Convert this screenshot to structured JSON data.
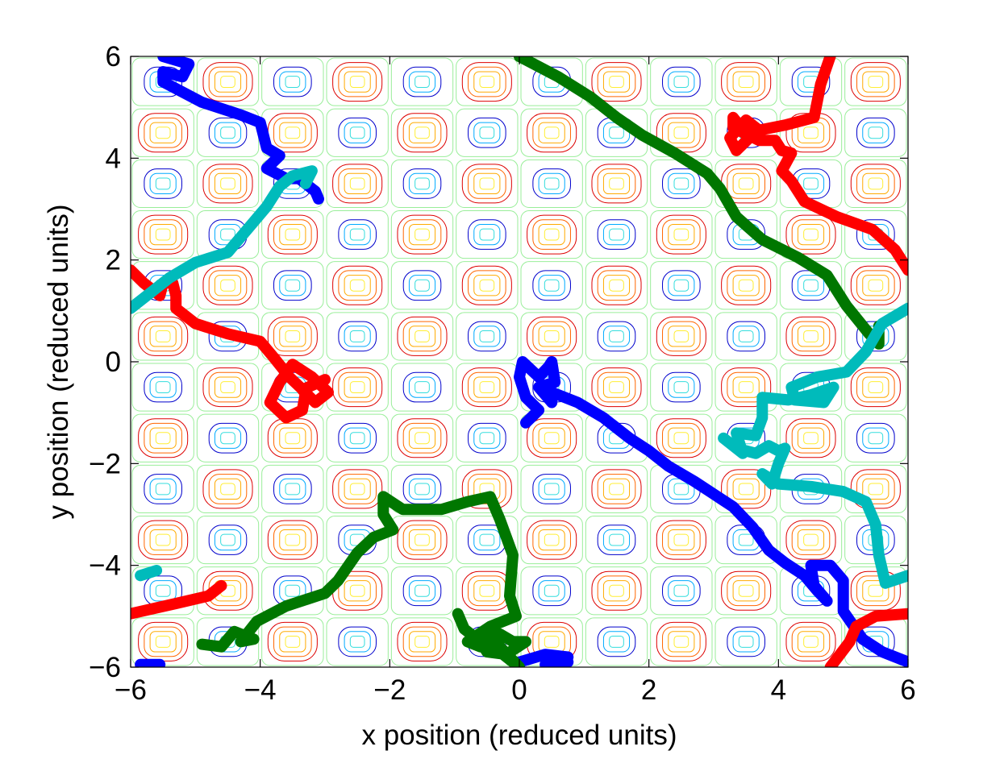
{
  "chart_data": {
    "type": "line",
    "title": "",
    "xlabel": "x position (reduced units)",
    "ylabel": "y position (reduced units)",
    "xlim": [
      -6,
      6
    ],
    "ylim": [
      -6,
      6
    ],
    "xticks": [
      -6,
      -4,
      -2,
      0,
      2,
      4,
      6
    ],
    "yticks": [
      -6,
      -4,
      -2,
      0,
      2,
      4,
      6
    ],
    "xtick_labels": [
      "−6",
      "−4",
      "−2",
      "0",
      "2",
      "4",
      "6"
    ],
    "ytick_labels": [
      "−6",
      "−4",
      "−2",
      "0",
      "2",
      "4",
      "6"
    ],
    "grid": false,
    "legend": "none",
    "background_contour": {
      "description_function": "sin(pi*x)*sin(pi*y) periodic potential",
      "cell_period": 1,
      "colors": [
        "#0000cc",
        "#00aaff",
        "#33dddd",
        "#99ee99",
        "#ffee33",
        "#ffaa00",
        "#ff6600",
        "#dd0000"
      ]
    },
    "series": [
      {
        "color": "#0000ff",
        "points": [
          [
            -5.5,
            6.0
          ],
          [
            -5.1,
            5.85
          ],
          [
            -5.2,
            5.6
          ],
          [
            -5.5,
            5.7
          ],
          [
            -5.5,
            5.5
          ],
          [
            -4.9,
            5.1
          ],
          [
            -4.3,
            4.85
          ],
          [
            -4.0,
            4.7
          ],
          [
            -3.9,
            4.2
          ],
          [
            -3.7,
            4.05
          ],
          [
            -3.9,
            3.8
          ],
          [
            -3.6,
            3.6
          ],
          [
            -3.4,
            3.6
          ],
          [
            -3.2,
            3.4
          ],
          [
            -3.15,
            3.35
          ],
          [
            -3.1,
            3.2
          ]
        ]
      },
      {
        "color": "#0000ff",
        "points": [
          [
            -5.85,
            -5.95
          ],
          [
            -5.55,
            -5.95
          ]
        ]
      },
      {
        "color": "#0000ff",
        "points": [
          [
            0.1,
            -1.2
          ],
          [
            0.3,
            -0.95
          ],
          [
            0.1,
            -0.7
          ],
          [
            0.0,
            -0.3
          ],
          [
            0.05,
            0.0
          ],
          [
            0.3,
            -0.3
          ],
          [
            0.45,
            -0.1
          ],
          [
            0.5,
            0.0
          ],
          [
            0.55,
            -0.4
          ],
          [
            0.3,
            -0.5
          ],
          [
            0.5,
            -0.8
          ],
          [
            0.5,
            -0.6
          ],
          [
            0.9,
            -0.8
          ],
          [
            1.3,
            -1.1
          ],
          [
            1.7,
            -1.5
          ],
          [
            2.0,
            -1.75
          ],
          [
            2.3,
            -2.05
          ],
          [
            2.7,
            -2.35
          ],
          [
            3.0,
            -2.6
          ],
          [
            3.3,
            -2.85
          ],
          [
            3.6,
            -3.25
          ],
          [
            3.85,
            -3.7
          ],
          [
            4.1,
            -3.95
          ],
          [
            4.4,
            -4.2
          ],
          [
            4.6,
            -4.5
          ],
          [
            4.75,
            -4.7
          ],
          [
            4.55,
            -4.4
          ],
          [
            4.5,
            -4.0
          ],
          [
            4.8,
            -4.0
          ],
          [
            5.0,
            -4.3
          ],
          [
            5.0,
            -4.9
          ],
          [
            5.3,
            -5.45
          ],
          [
            5.6,
            -5.7
          ],
          [
            6.0,
            -5.9
          ]
        ]
      },
      {
        "color": "#0000ff",
        "points": [
          [
            0.0,
            -5.9
          ],
          [
            0.4,
            -5.75
          ],
          [
            0.75,
            -5.8
          ],
          [
            0.4,
            -5.95
          ],
          [
            0.75,
            -5.9
          ]
        ]
      },
      {
        "color": "#ff0000",
        "points": [
          [
            -6.0,
            1.8
          ],
          [
            -5.8,
            1.55
          ],
          [
            -5.55,
            1.3
          ],
          [
            -5.5,
            1.55
          ],
          [
            -5.35,
            1.55
          ],
          [
            -5.3,
            1.3
          ],
          [
            -5.3,
            1.05
          ],
          [
            -5.0,
            0.75
          ],
          [
            -4.5,
            0.55
          ],
          [
            -4.0,
            0.4
          ],
          [
            -3.8,
            0.1
          ],
          [
            -3.55,
            -0.3
          ],
          [
            -3.3,
            -0.6
          ],
          [
            -3.35,
            -0.95
          ],
          [
            -3.6,
            -1.1
          ],
          [
            -3.85,
            -0.8
          ],
          [
            -3.7,
            -0.4
          ],
          [
            -3.5,
            -0.05
          ],
          [
            -3.2,
            -0.3
          ],
          [
            -2.95,
            -0.6
          ],
          [
            -3.15,
            -0.8
          ],
          [
            -3.35,
            -0.55
          ],
          [
            -3.0,
            -0.35
          ]
        ]
      },
      {
        "color": "#ff0000",
        "points": [
          [
            -6.0,
            -4.95
          ],
          [
            -5.3,
            -4.75
          ],
          [
            -4.8,
            -4.6
          ],
          [
            -4.6,
            -4.4
          ]
        ]
      },
      {
        "color": "#ff0000",
        "points": [
          [
            4.8,
            6.0
          ],
          [
            4.65,
            5.45
          ],
          [
            4.55,
            4.8
          ],
          [
            4.1,
            4.65
          ],
          [
            3.7,
            4.55
          ],
          [
            3.5,
            4.75
          ],
          [
            3.25,
            4.4
          ],
          [
            3.35,
            4.15
          ],
          [
            3.55,
            4.4
          ],
          [
            3.3,
            4.8
          ],
          [
            3.3,
            4.6
          ],
          [
            3.7,
            4.35
          ],
          [
            3.95,
            4.35
          ],
          [
            4.05,
            4.15
          ],
          [
            4.2,
            4.1
          ],
          [
            4.05,
            3.75
          ],
          [
            4.2,
            3.55
          ],
          [
            4.4,
            3.15
          ],
          [
            4.9,
            2.85
          ],
          [
            5.45,
            2.6
          ],
          [
            5.8,
            2.2
          ],
          [
            6.0,
            1.8
          ]
        ]
      },
      {
        "color": "#ff0000",
        "points": [
          [
            4.8,
            -6.0
          ],
          [
            5.1,
            -5.5
          ],
          [
            5.2,
            -5.2
          ],
          [
            5.5,
            -5.0
          ],
          [
            6.0,
            -4.95
          ]
        ]
      },
      {
        "color": "#007700",
        "points": [
          [
            0.0,
            6.0
          ],
          [
            0.6,
            5.6
          ],
          [
            1.1,
            5.2
          ],
          [
            1.5,
            4.8
          ],
          [
            1.9,
            4.45
          ],
          [
            2.4,
            4.1
          ],
          [
            2.9,
            3.7
          ],
          [
            3.1,
            3.4
          ],
          [
            3.35,
            2.85
          ],
          [
            3.75,
            2.4
          ],
          [
            4.3,
            2.05
          ],
          [
            4.75,
            1.7
          ],
          [
            5.05,
            1.1
          ],
          [
            5.4,
            0.55
          ],
          [
            5.55,
            0.35
          ],
          [
            5.55,
            0.7
          ]
        ]
      },
      {
        "color": "#007700",
        "points": [
          [
            -4.9,
            -5.55
          ],
          [
            -4.6,
            -5.6
          ],
          [
            -4.4,
            -5.3
          ],
          [
            -4.1,
            -5.45
          ],
          [
            -4.3,
            -5.5
          ],
          [
            -4.05,
            -5.1
          ],
          [
            -3.6,
            -4.8
          ],
          [
            -3.0,
            -4.55
          ],
          [
            -2.8,
            -4.3
          ],
          [
            -2.5,
            -3.75
          ],
          [
            -2.25,
            -3.45
          ],
          [
            -1.95,
            -3.3
          ],
          [
            -2.1,
            -3.0
          ],
          [
            -2.1,
            -2.65
          ],
          [
            -1.8,
            -2.9
          ],
          [
            -1.5,
            -2.9
          ],
          [
            -1.2,
            -2.9
          ],
          [
            -0.8,
            -2.75
          ],
          [
            -0.45,
            -2.65
          ],
          [
            -0.3,
            -3.1
          ],
          [
            -0.1,
            -3.8
          ],
          [
            -0.15,
            -4.6
          ],
          [
            -0.05,
            -5.0
          ],
          [
            -0.45,
            -5.2
          ],
          [
            -0.8,
            -5.5
          ],
          [
            -0.6,
            -5.6
          ],
          [
            -0.35,
            -5.35
          ],
          [
            -0.3,
            -5.7
          ],
          [
            -0.1,
            -5.9
          ],
          [
            0.0,
            -6.0
          ],
          [
            -0.3,
            -5.6
          ],
          [
            -0.5,
            -5.6
          ],
          [
            -0.3,
            -5.35
          ],
          [
            -0.1,
            -5.5
          ],
          [
            0.1,
            -5.5
          ],
          [
            -0.2,
            -5.75
          ],
          [
            -0.5,
            -5.7
          ],
          [
            -0.6,
            -5.5
          ],
          [
            -0.85,
            -5.25
          ],
          [
            -0.95,
            -4.95
          ]
        ]
      },
      {
        "color": "#00bbbb",
        "points": [
          [
            -6.0,
            1.05
          ],
          [
            -5.7,
            1.35
          ],
          [
            -5.4,
            1.65
          ],
          [
            -5.0,
            1.95
          ],
          [
            -4.5,
            2.15
          ],
          [
            -4.2,
            2.6
          ],
          [
            -3.9,
            3.05
          ],
          [
            -3.7,
            3.45
          ],
          [
            -3.5,
            3.65
          ],
          [
            -3.2,
            3.75
          ],
          [
            -3.3,
            3.5
          ]
        ]
      },
      {
        "color": "#00bbbb",
        "points": [
          [
            -5.85,
            -4.2
          ],
          [
            -5.6,
            -4.1
          ]
        ]
      },
      {
        "color": "#00bbbb",
        "points": [
          [
            6.0,
            1.05
          ],
          [
            5.6,
            0.75
          ],
          [
            5.35,
            0.2
          ],
          [
            5.05,
            -0.2
          ],
          [
            4.6,
            -0.3
          ],
          [
            4.2,
            -0.5
          ],
          [
            4.25,
            -0.75
          ],
          [
            4.7,
            -0.8
          ],
          [
            4.85,
            -0.5
          ],
          [
            4.5,
            -0.65
          ],
          [
            4.15,
            -0.75
          ],
          [
            3.75,
            -0.7
          ],
          [
            3.75,
            -1.1
          ],
          [
            3.65,
            -1.45
          ],
          [
            3.35,
            -1.4
          ],
          [
            3.45,
            -1.8
          ],
          [
            3.15,
            -1.5
          ],
          [
            3.35,
            -1.7
          ],
          [
            3.65,
            -1.8
          ],
          [
            3.85,
            -1.65
          ],
          [
            4.0,
            -1.75
          ],
          [
            4.1,
            -1.7
          ],
          [
            4.0,
            -2.0
          ],
          [
            3.9,
            -2.4
          ],
          [
            3.75,
            -2.2
          ],
          [
            4.0,
            -2.4
          ],
          [
            4.5,
            -2.45
          ],
          [
            5.0,
            -2.55
          ],
          [
            5.35,
            -2.75
          ],
          [
            5.5,
            -3.2
          ],
          [
            5.55,
            -3.8
          ],
          [
            5.65,
            -4.35
          ],
          [
            6.0,
            -4.2
          ]
        ]
      }
    ]
  }
}
